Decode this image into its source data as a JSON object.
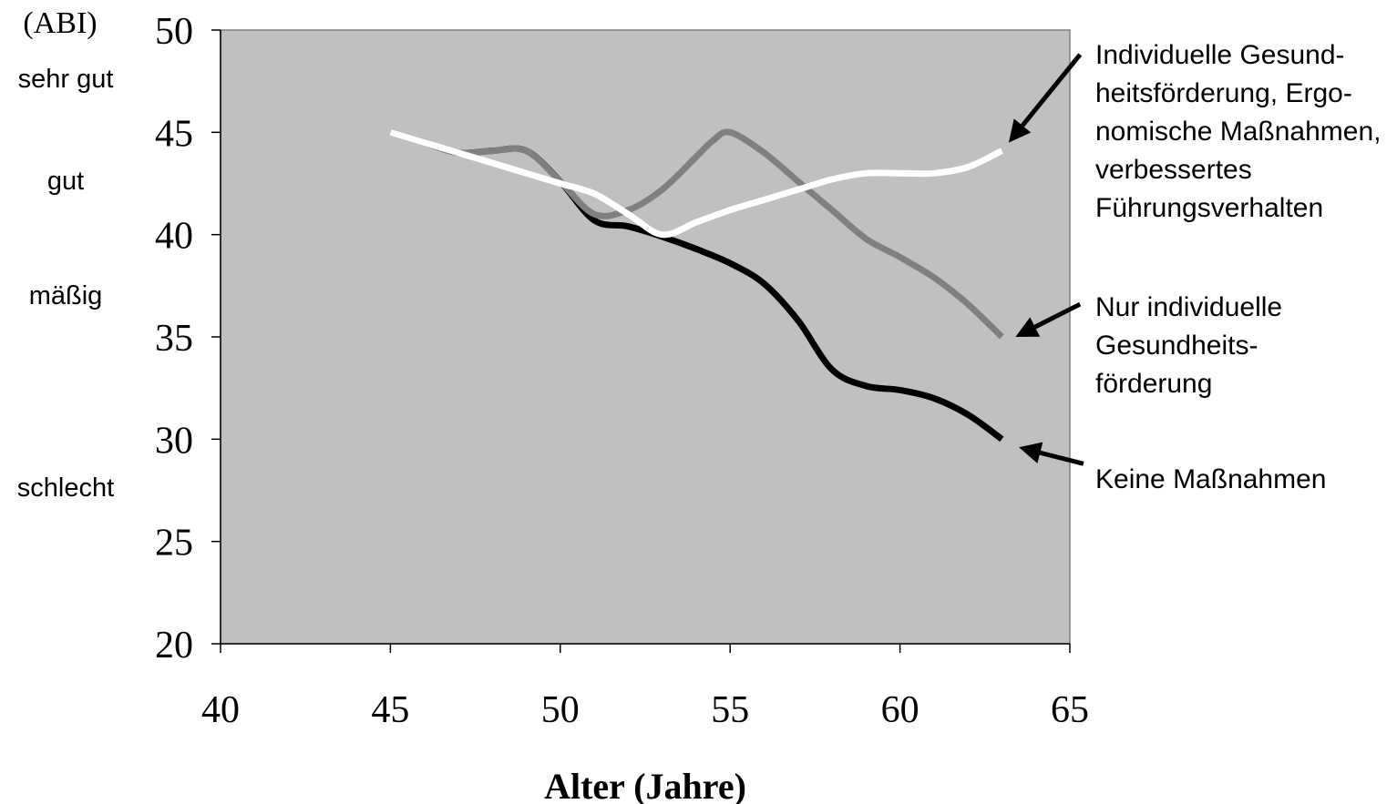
{
  "chart_data": {
    "type": "line",
    "title": "",
    "xlabel": "Alter (Jahre)",
    "ylabel": "(ABI)",
    "xlim": [
      40,
      65
    ],
    "ylim": [
      20,
      50
    ],
    "x_ticks": [
      40,
      45,
      50,
      55,
      60,
      65
    ],
    "y_ticks": [
      20,
      25,
      30,
      35,
      40,
      45,
      50
    ],
    "grid": false,
    "plot_background": "#c0c0c0",
    "category_labels": [
      {
        "text": "sehr gut",
        "y": 47.2
      },
      {
        "text": "gut",
        "y": 42.2
      },
      {
        "text": "mäßig",
        "y": 36.6
      },
      {
        "text": "schlecht",
        "y": 27.2
      }
    ],
    "series": [
      {
        "name": "Keine Maßnahmen",
        "color": "#000000",
        "x": [
          45,
          46,
          47,
          48,
          49,
          50,
          51,
          52,
          53,
          54,
          55,
          56,
          57,
          58,
          59,
          60,
          61,
          62,
          63
        ],
        "y": [
          45,
          44.5,
          44,
          44.1,
          44.1,
          42.6,
          40.7,
          40.4,
          39.9,
          39.3,
          38.6,
          37.6,
          35.8,
          33.4,
          32.6,
          32.4,
          32.0,
          31.2,
          30.0
        ]
      },
      {
        "name": "Nur individuelle Gesundheitsförderung",
        "color": "#808080",
        "x": [
          45,
          46,
          47,
          48,
          49,
          50,
          51,
          52,
          53,
          54,
          54.5,
          55,
          56,
          57,
          58,
          59,
          60,
          61,
          62,
          63
        ],
        "y": [
          45,
          44.5,
          44,
          44.1,
          44.1,
          42.6,
          41.0,
          41.2,
          42.2,
          43.8,
          44.6,
          45.0,
          44.0,
          42.6,
          41.2,
          39.8,
          38.9,
          37.9,
          36.6,
          35.0
        ]
      },
      {
        "name": "Individuelle Gesundheitsförderung, Ergonomische Maßnahmen, verbessertes Führungsverhalten",
        "color": "#ffffff",
        "x": [
          45,
          46,
          47,
          48,
          49,
          50,
          51,
          52,
          53,
          54,
          55,
          56,
          57,
          58,
          59,
          60,
          61,
          62,
          63
        ],
        "y": [
          45,
          44.5,
          44,
          43.5,
          43,
          42.5,
          42.0,
          41.0,
          40.0,
          40.6,
          41.2,
          41.7,
          42.2,
          42.7,
          43.0,
          43.0,
          43.0,
          43.3,
          44.1
        ]
      }
    ],
    "annotations": [
      {
        "lines": [
          "Individuelle Gesund-",
          "heitsförderung, Ergo-",
          "nomische Maßnahmen,",
          "verbessertes",
          "Führungsverhalten"
        ],
        "arrow_from": [
          65.3,
          48.8
        ],
        "arrow_to": [
          63.2,
          44.5
        ]
      },
      {
        "lines": [
          "Nur individuelle",
          "Gesundheits-",
          "förderung"
        ],
        "arrow_from": [
          65.3,
          36.6
        ],
        "arrow_to": [
          63.4,
          35.0
        ]
      },
      {
        "lines": [
          "Keine Maßnahmen"
        ],
        "arrow_from": [
          65.4,
          28.8
        ],
        "arrow_to": [
          63.5,
          29.6
        ]
      }
    ]
  }
}
